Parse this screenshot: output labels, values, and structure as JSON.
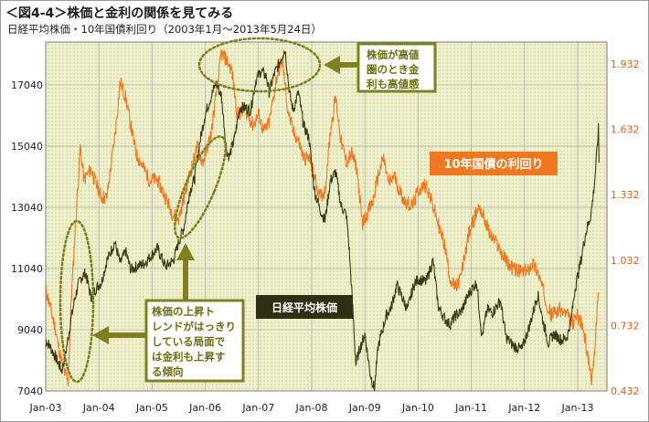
{
  "header": {
    "title": "＜図4-4＞株価と金利の関係を見てみる",
    "subtitle": "日経平均株価・10年国債利回り（2003年1月～2013年5月24日）"
  },
  "chart_data": {
    "type": "line",
    "x_ticks": [
      "Jan-03",
      "Jan-04",
      "Jan-05",
      "Jan-06",
      "Jan-07",
      "Jan-08",
      "Jan-09",
      "Jan-10",
      "Jan-11",
      "Jan-12",
      "Jan-13"
    ],
    "y_left": {
      "ticks": [
        7040,
        9040,
        11040,
        13040,
        15040,
        17040
      ],
      "range": [
        7040,
        18440
      ]
    },
    "y_right": {
      "ticks": [
        "0.432",
        "0.732",
        "1.032",
        "1.332",
        "1.632",
        "1.932"
      ],
      "range": [
        0.432,
        2.032
      ]
    },
    "grid": true,
    "colors": {
      "nikkei": "#3a3a10",
      "jgb": "#f07820",
      "annotation": "#808020",
      "plot_bg": "#eef0cc"
    },
    "series": [
      {
        "axis": "left",
        "label_key": "nikkei",
        "points": [
          [
            2003.0,
            8700
          ],
          [
            2003.08,
            8500
          ],
          [
            2003.17,
            8200
          ],
          [
            2003.25,
            7900
          ],
          [
            2003.3,
            7700
          ],
          [
            2003.37,
            8200
          ],
          [
            2003.45,
            9100
          ],
          [
            2003.55,
            10100
          ],
          [
            2003.65,
            10700
          ],
          [
            2003.75,
            10900
          ],
          [
            2003.85,
            10100
          ],
          [
            2003.95,
            10400
          ],
          [
            2004.05,
            10600
          ],
          [
            2004.15,
            11300
          ],
          [
            2004.3,
            11900
          ],
          [
            2004.4,
            11200
          ],
          [
            2004.5,
            11600
          ],
          [
            2004.6,
            11000
          ],
          [
            2004.7,
            11100
          ],
          [
            2004.85,
            11200
          ],
          [
            2004.95,
            11400
          ],
          [
            2005.1,
            11700
          ],
          [
            2005.25,
            11100
          ],
          [
            2005.4,
            11300
          ],
          [
            2005.5,
            11900
          ],
          [
            2005.6,
            12400
          ],
          [
            2005.7,
            13500
          ],
          [
            2005.8,
            14000
          ],
          [
            2005.9,
            15200
          ],
          [
            2006.0,
            16100
          ],
          [
            2006.08,
            16500
          ],
          [
            2006.2,
            17100
          ],
          [
            2006.3,
            16700
          ],
          [
            2006.4,
            14900
          ],
          [
            2006.45,
            14700
          ],
          [
            2006.55,
            15300
          ],
          [
            2006.65,
            16300
          ],
          [
            2006.75,
            16300
          ],
          [
            2006.85,
            16200
          ],
          [
            2006.95,
            17200
          ],
          [
            2007.05,
            17500
          ],
          [
            2007.15,
            17300
          ],
          [
            2007.2,
            16800
          ],
          [
            2007.3,
            17400
          ],
          [
            2007.4,
            17800
          ],
          [
            2007.5,
            18200
          ],
          [
            2007.58,
            16800
          ],
          [
            2007.65,
            16200
          ],
          [
            2007.75,
            16800
          ],
          [
            2007.85,
            15700
          ],
          [
            2007.95,
            15300
          ],
          [
            2008.05,
            13600
          ],
          [
            2008.15,
            13000
          ],
          [
            2008.25,
            12600
          ],
          [
            2008.35,
            13900
          ],
          [
            2008.45,
            14200
          ],
          [
            2008.55,
            13100
          ],
          [
            2008.65,
            12800
          ],
          [
            2008.7,
            11800
          ],
          [
            2008.78,
            9500
          ],
          [
            2008.83,
            7900
          ],
          [
            2008.9,
            8400
          ],
          [
            2009.0,
            8900
          ],
          [
            2009.1,
            7600
          ],
          [
            2009.18,
            7100
          ],
          [
            2009.25,
            8500
          ],
          [
            2009.4,
            9500
          ],
          [
            2009.5,
            9800
          ],
          [
            2009.6,
            10500
          ],
          [
            2009.7,
            10100
          ],
          [
            2009.8,
            9700
          ],
          [
            2009.92,
            10500
          ],
          [
            2010.0,
            10700
          ],
          [
            2010.15,
            10600
          ],
          [
            2010.28,
            11300
          ],
          [
            2010.38,
            9800
          ],
          [
            2010.5,
            9400
          ],
          [
            2010.6,
            9200
          ],
          [
            2010.7,
            9500
          ],
          [
            2010.8,
            9600
          ],
          [
            2010.95,
            10200
          ],
          [
            2011.1,
            10600
          ],
          [
            2011.2,
            8800
          ],
          [
            2011.3,
            9700
          ],
          [
            2011.4,
            9600
          ],
          [
            2011.55,
            10000
          ],
          [
            2011.65,
            8800
          ],
          [
            2011.8,
            8500
          ],
          [
            2011.95,
            8400
          ],
          [
            2012.1,
            9200
          ],
          [
            2012.25,
            10200
          ],
          [
            2012.35,
            9300
          ],
          [
            2012.45,
            8600
          ],
          [
            2012.55,
            8900
          ],
          [
            2012.7,
            8700
          ],
          [
            2012.8,
            8800
          ],
          [
            2012.88,
            9400
          ],
          [
            2012.95,
            10400
          ],
          [
            2013.05,
            11200
          ],
          [
            2013.15,
            12200
          ],
          [
            2013.25,
            12800
          ],
          [
            2013.32,
            13900
          ],
          [
            2013.37,
            15100
          ],
          [
            2013.39,
            15600
          ],
          [
            2013.4,
            14500
          ]
        ]
      },
      {
        "axis": "right",
        "label_key": "jgb",
        "points": [
          [
            2003.0,
            0.9
          ],
          [
            2003.08,
            0.82
          ],
          [
            2003.17,
            0.73
          ],
          [
            2003.25,
            0.62
          ],
          [
            2003.35,
            0.52
          ],
          [
            2003.42,
            0.47
          ],
          [
            2003.48,
            0.85
          ],
          [
            2003.55,
            1.15
          ],
          [
            2003.65,
            1.55
          ],
          [
            2003.72,
            1.4
          ],
          [
            2003.85,
            1.45
          ],
          [
            2003.95,
            1.38
          ],
          [
            2004.05,
            1.32
          ],
          [
            2004.15,
            1.32
          ],
          [
            2004.3,
            1.6
          ],
          [
            2004.4,
            1.85
          ],
          [
            2004.5,
            1.78
          ],
          [
            2004.6,
            1.65
          ],
          [
            2004.7,
            1.52
          ],
          [
            2004.85,
            1.45
          ],
          [
            2004.95,
            1.4
          ],
          [
            2005.1,
            1.4
          ],
          [
            2005.25,
            1.32
          ],
          [
            2005.4,
            1.24
          ],
          [
            2005.5,
            1.22
          ],
          [
            2005.6,
            1.32
          ],
          [
            2005.7,
            1.42
          ],
          [
            2005.85,
            1.55
          ],
          [
            2005.95,
            1.48
          ],
          [
            2006.1,
            1.6
          ],
          [
            2006.2,
            1.78
          ],
          [
            2006.3,
            1.98
          ],
          [
            2006.4,
            1.95
          ],
          [
            2006.5,
            1.9
          ],
          [
            2006.6,
            1.7
          ],
          [
            2006.75,
            1.72
          ],
          [
            2006.9,
            1.65
          ],
          [
            2007.0,
            1.7
          ],
          [
            2007.1,
            1.62
          ],
          [
            2007.2,
            1.66
          ],
          [
            2007.35,
            1.88
          ],
          [
            2007.45,
            1.95
          ],
          [
            2007.55,
            1.72
          ],
          [
            2007.65,
            1.62
          ],
          [
            2007.75,
            1.58
          ],
          [
            2007.85,
            1.5
          ],
          [
            2007.95,
            1.5
          ],
          [
            2008.05,
            1.42
          ],
          [
            2008.15,
            1.32
          ],
          [
            2008.25,
            1.35
          ],
          [
            2008.35,
            1.62
          ],
          [
            2008.45,
            1.78
          ],
          [
            2008.55,
            1.58
          ],
          [
            2008.65,
            1.48
          ],
          [
            2008.75,
            1.52
          ],
          [
            2008.85,
            1.45
          ],
          [
            2008.95,
            1.2
          ],
          [
            2009.05,
            1.25
          ],
          [
            2009.15,
            1.3
          ],
          [
            2009.25,
            1.42
          ],
          [
            2009.35,
            1.5
          ],
          [
            2009.45,
            1.38
          ],
          [
            2009.55,
            1.42
          ],
          [
            2009.65,
            1.35
          ],
          [
            2009.75,
            1.3
          ],
          [
            2009.9,
            1.28
          ],
          [
            2010.0,
            1.35
          ],
          [
            2010.15,
            1.38
          ],
          [
            2010.28,
            1.28
          ],
          [
            2010.4,
            1.18
          ],
          [
            2010.5,
            1.1
          ],
          [
            2010.6,
            0.95
          ],
          [
            2010.7,
            0.9
          ],
          [
            2010.8,
            0.95
          ],
          [
            2010.95,
            1.15
          ],
          [
            2011.05,
            1.22
          ],
          [
            2011.15,
            1.28
          ],
          [
            2011.25,
            1.22
          ],
          [
            2011.35,
            1.15
          ],
          [
            2011.5,
            1.1
          ],
          [
            2011.6,
            1.05
          ],
          [
            2011.75,
            1.0
          ],
          [
            2011.9,
            0.98
          ],
          [
            2012.05,
            0.98
          ],
          [
            2012.15,
            1.02
          ],
          [
            2012.25,
            0.98
          ],
          [
            2012.4,
            0.85
          ],
          [
            2012.5,
            0.78
          ],
          [
            2012.6,
            0.8
          ],
          [
            2012.7,
            0.8
          ],
          [
            2012.8,
            0.78
          ],
          [
            2012.9,
            0.74
          ],
          [
            2013.0,
            0.78
          ],
          [
            2013.1,
            0.72
          ],
          [
            2013.2,
            0.58
          ],
          [
            2013.27,
            0.48
          ],
          [
            2013.32,
            0.6
          ],
          [
            2013.37,
            0.85
          ],
          [
            2013.4,
            0.88
          ]
        ]
      }
    ]
  },
  "labels": {
    "nikkei": "日経平均株価",
    "jgb": "10年国債の利回り"
  },
  "annotations": {
    "high": [
      "株価が高値",
      "圏のとき金",
      "利も高値感"
    ],
    "trend": [
      "株価の上昇ト",
      "レンドがはっきり",
      "している局面で",
      "は金利も上昇す",
      "る傾向"
    ]
  }
}
